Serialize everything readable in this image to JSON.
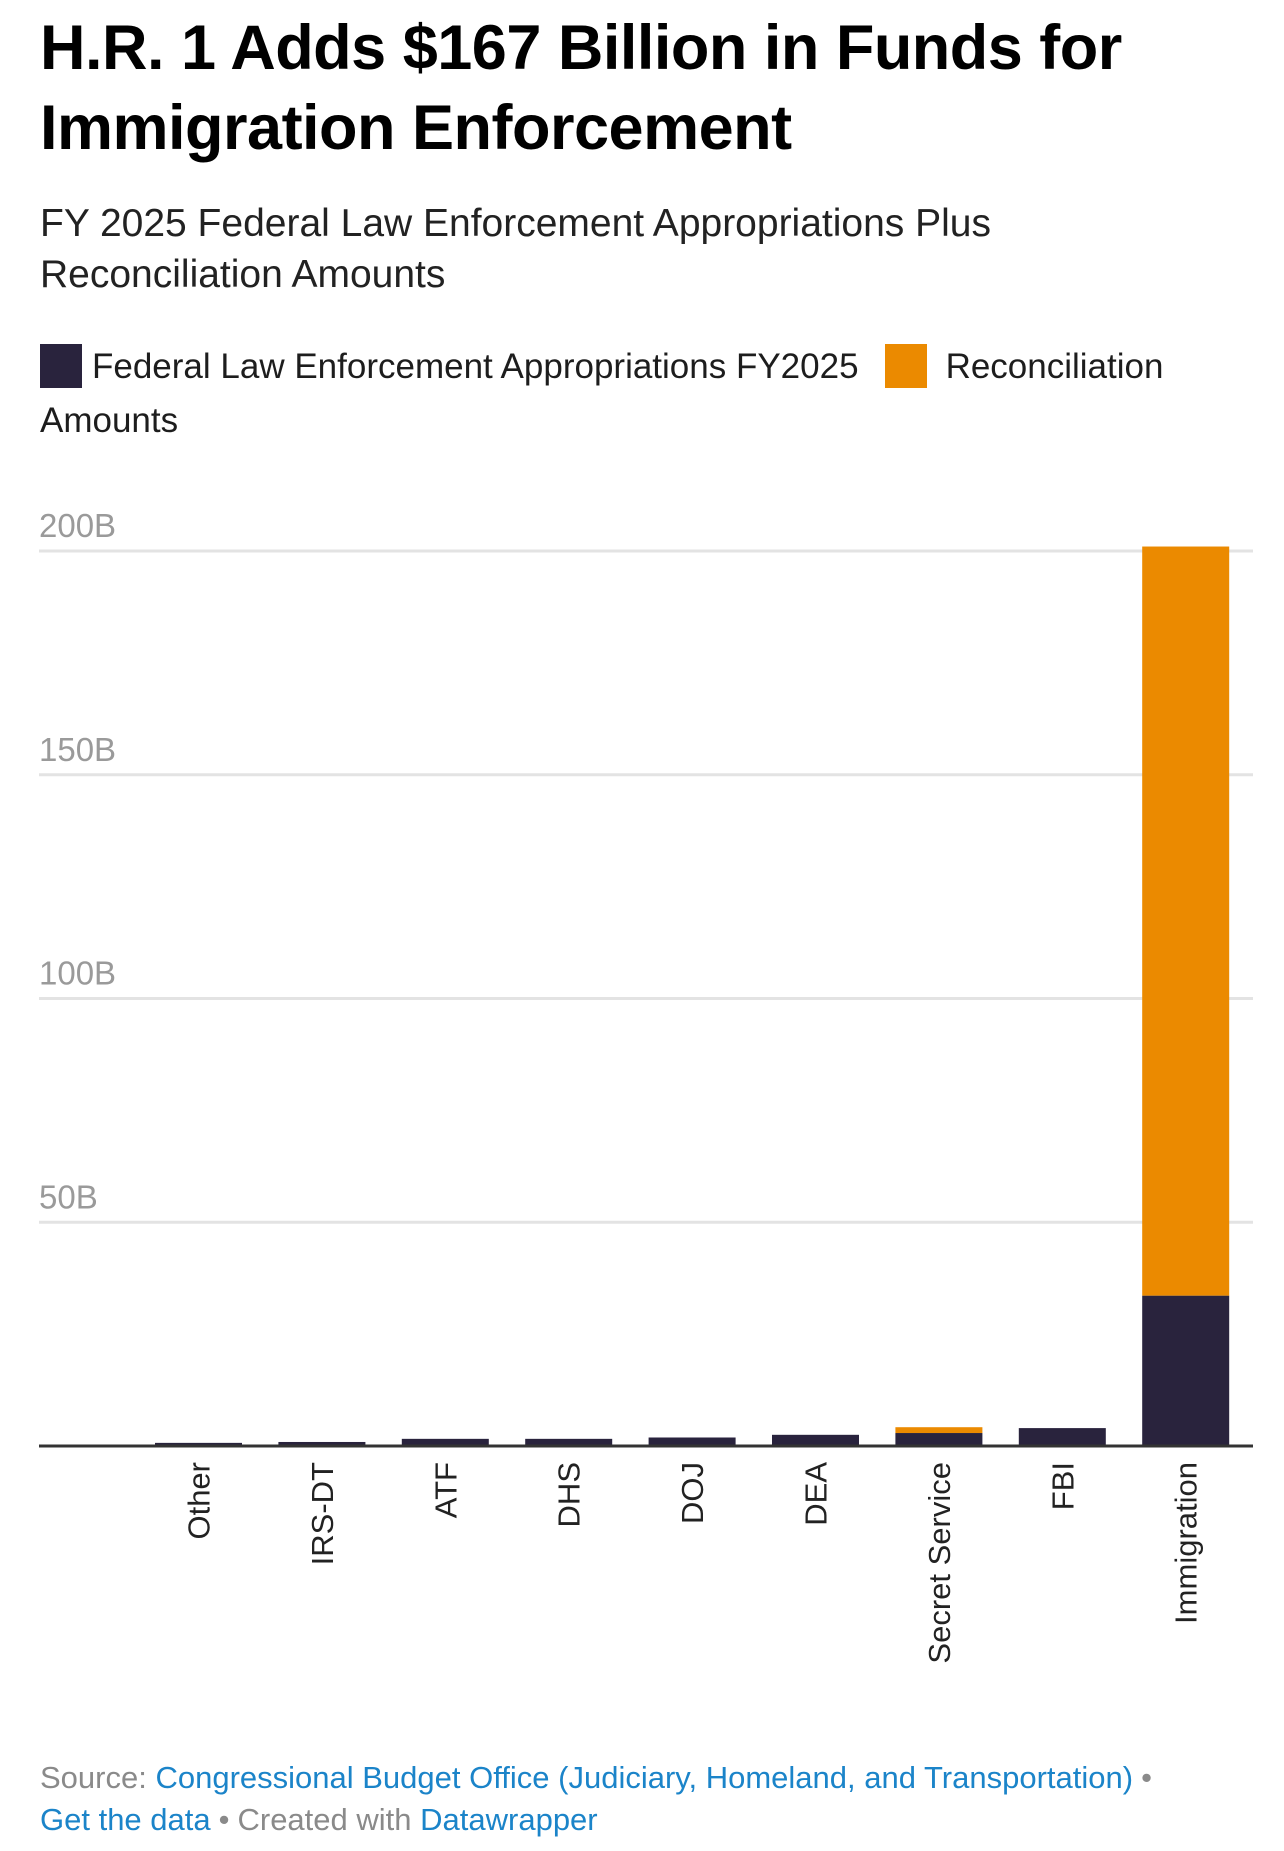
{
  "header": {
    "title": "H.R. 1 Adds $167 Billion in Funds for Immigration Enforcement",
    "subtitle": "FY 2025 Federal Law Enforcement Appropriations Plus Reconciliation Amounts"
  },
  "legend": [
    {
      "label": "Federal Law Enforcement Appropriations FY2025",
      "color": "#29233d"
    },
    {
      "label": "Reconciliation Amounts",
      "color": "#eb8a00"
    }
  ],
  "footer": {
    "source_prefix": "Source:",
    "source_link": "Congressional Budget Office (Judiciary, Homeland, and Transportation)",
    "separator": "•",
    "get_data": "Get the data",
    "created_with": "Created with",
    "tool": "Datawrapper"
  },
  "chart_data": {
    "type": "bar",
    "stacked": true,
    "title": "H.R. 1 Adds $167 Billion in Funds for Immigration Enforcement",
    "subtitle": "FY 2025 Federal Law Enforcement Appropriations Plus Reconciliation Amounts",
    "xlabel": "",
    "ylabel": "",
    "categories": [
      "Other",
      "IRS-DT",
      "ATF",
      "DHS",
      "DOJ",
      "DEA",
      "Secret Service",
      "FBI",
      "Immigration"
    ],
    "series": [
      {
        "name": "Federal Law Enforcement Appropriations FY2025",
        "color": "#29233d",
        "values": [
          0.7,
          0.9,
          1.6,
          1.6,
          1.9,
          2.5,
          2.9,
          4.0,
          33.6
        ]
      },
      {
        "name": "Reconciliation Amounts",
        "color": "#eb8a00",
        "values": [
          0,
          0,
          0,
          0,
          0,
          0,
          1.3,
          0,
          167.4
        ]
      }
    ],
    "ylim": [
      0,
      200
    ],
    "yticks": [
      {
        "value": 50,
        "label": "50B"
      },
      {
        "value": 100,
        "label": "100B"
      },
      {
        "value": 150,
        "label": "150B"
      },
      {
        "value": 200,
        "label": "200B"
      }
    ],
    "grid": true,
    "legend_position": "top-left",
    "units": "billions USD"
  }
}
